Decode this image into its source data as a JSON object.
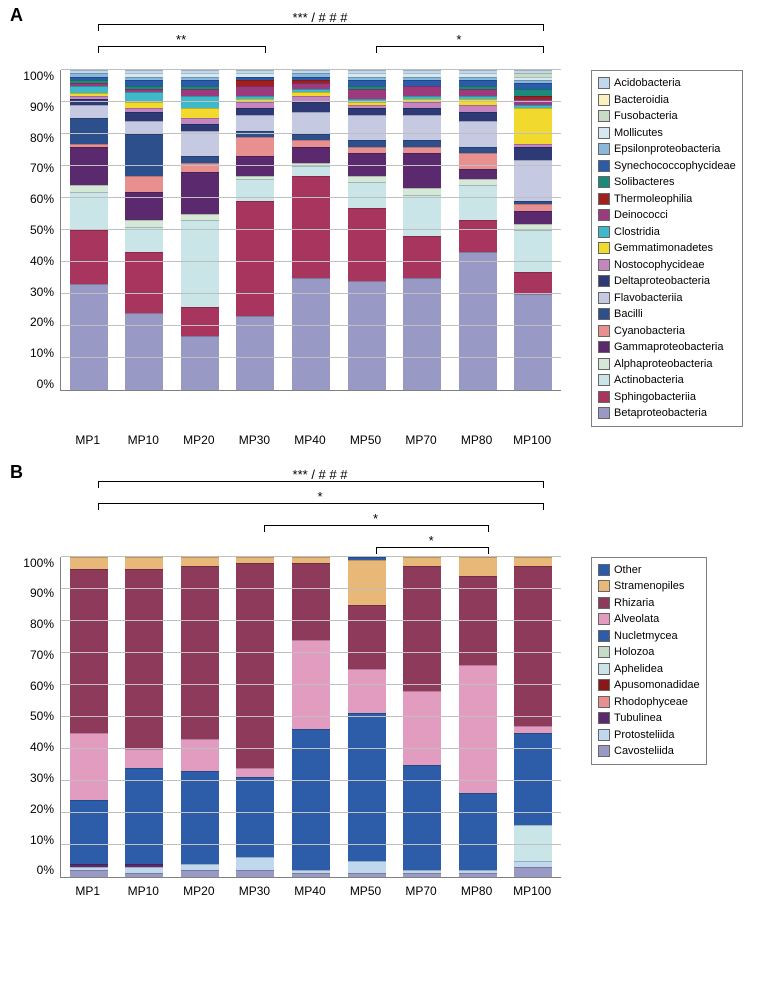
{
  "panelA": {
    "label": "A",
    "categories": [
      "MP1",
      "MP10",
      "MP20",
      "MP30",
      "MP40",
      "MP50",
      "MP70",
      "MP80",
      "MP100"
    ],
    "ylim": [
      0,
      100
    ],
    "ytick_step": 10,
    "sig": [
      {
        "text": "***   / # # #",
        "from": 0,
        "to": 8,
        "y": 0
      },
      {
        "text": "**",
        "from": 0,
        "to": 3,
        "y": 22
      },
      {
        "text": "*",
        "from": 5,
        "to": 8,
        "y": 22
      }
    ],
    "legend": [
      {
        "name": "Acidobacteria",
        "color": "#bfd8ed"
      },
      {
        "name": "Bacteroidia",
        "color": "#f9f2c0"
      },
      {
        "name": "Fusobacteria",
        "color": "#c6dcc6"
      },
      {
        "name": "Mollicutes",
        "color": "#d6e9f0"
      },
      {
        "name": "Epsilonproteobacteria",
        "color": "#89b8d8"
      },
      {
        "name": "Synechococcophycideae",
        "color": "#2a5caa"
      },
      {
        "name": "Solibacteres",
        "color": "#1a8a7a"
      },
      {
        "name": "Thermoleophilia",
        "color": "#a02020"
      },
      {
        "name": "Deinococci",
        "color": "#9b3a7d"
      },
      {
        "name": "Clostridia",
        "color": "#3fb8c9"
      },
      {
        "name": "Gemmatimonadetes",
        "color": "#f2d92e"
      },
      {
        "name": "Nostocophycideae",
        "color": "#c585bf"
      },
      {
        "name": "Deltaproteobacteria",
        "color": "#2e3a76"
      },
      {
        "name": "Flavobacteriia",
        "color": "#c5c9e2"
      },
      {
        "name": "Bacilli",
        "color": "#2d4f8c"
      },
      {
        "name": "Cyanobacteria",
        "color": "#e89090"
      },
      {
        "name": "Gammaproteobacteria",
        "color": "#5b2a6e"
      },
      {
        "name": "Alphaproteobacteria",
        "color": "#d5e8d5"
      },
      {
        "name": "Actinobacteria",
        "color": "#c9e5e8"
      },
      {
        "name": "Sphingobacteriia",
        "color": "#a8355e"
      },
      {
        "name": "Betaproteobacteria",
        "color": "#9999c5"
      }
    ],
    "data": [
      {
        "Betaproteobacteria": 33,
        "Sphingobacteriia": 17,
        "Actinobacteria": 12,
        "Alphaproteobacteria": 2,
        "Gammaproteobacteria": 12,
        "Cyanobacteria": 1,
        "Bacilli": 8,
        "Flavobacteriia": 4,
        "Deltaproteobacteria": 2,
        "Nostocophycideae": 1,
        "Gemmatimonadetes": 1,
        "Clostridia": 2,
        "Deinococci": 1,
        "Thermoleophilia": 0,
        "Solibacteres": 1,
        "Synechococcophycideae": 1,
        "Epsilonproteobacteria": 1,
        "Mollicutes": 0,
        "Fusobacteria": 0,
        "Bacteroidia": 0,
        "Acidobacteria": 1
      },
      {
        "Betaproteobacteria": 24,
        "Sphingobacteriia": 19,
        "Actinobacteria": 8,
        "Alphaproteobacteria": 2,
        "Gammaproteobacteria": 9,
        "Cyanobacteria": 5,
        "Bacilli": 13,
        "Flavobacteriia": 4,
        "Deltaproteobacteria": 3,
        "Nostocophycideae": 1,
        "Gemmatimonadetes": 2,
        "Clostridia": 3,
        "Deinococci": 1,
        "Thermoleophilia": 0,
        "Solibacteres": 1,
        "Synechococcophycideae": 2,
        "Epsilonproteobacteria": 1,
        "Mollicutes": 1,
        "Fusobacteria": 0,
        "Bacteroidia": 0,
        "Acidobacteria": 1
      },
      {
        "Betaproteobacteria": 17,
        "Sphingobacteriia": 9,
        "Actinobacteria": 27,
        "Alphaproteobacteria": 2,
        "Gammaproteobacteria": 13,
        "Cyanobacteria": 3,
        "Bacilli": 2,
        "Flavobacteriia": 8,
        "Deltaproteobacteria": 2,
        "Nostocophycideae": 2,
        "Gemmatimonadetes": 3,
        "Clostridia": 4,
        "Deinococci": 2,
        "Thermoleophilia": 0,
        "Solibacteres": 1,
        "Synechococcophycideae": 2,
        "Epsilonproteobacteria": 1,
        "Mollicutes": 1,
        "Fusobacteria": 0,
        "Bacteroidia": 0,
        "Acidobacteria": 1
      },
      {
        "Betaproteobacteria": 23,
        "Sphingobacteriia": 36,
        "Actinobacteria": 7,
        "Alphaproteobacteria": 1,
        "Gammaproteobacteria": 6,
        "Cyanobacteria": 6,
        "Bacilli": 2,
        "Flavobacteriia": 5,
        "Deltaproteobacteria": 2,
        "Nostocophycideae": 2,
        "Gemmatimonadetes": 1,
        "Clostridia": 1,
        "Deinococci": 3,
        "Thermoleophilia": 2,
        "Solibacteres": 0,
        "Synechococcophycideae": 1,
        "Epsilonproteobacteria": 0,
        "Mollicutes": 1,
        "Fusobacteria": 0,
        "Bacteroidia": 0,
        "Acidobacteria": 1
      },
      {
        "Betaproteobacteria": 35,
        "Sphingobacteriia": 32,
        "Actinobacteria": 3,
        "Alphaproteobacteria": 1,
        "Gammaproteobacteria": 5,
        "Cyanobacteria": 2,
        "Bacilli": 2,
        "Flavobacteriia": 7,
        "Deltaproteobacteria": 3,
        "Nostocophycideae": 2,
        "Gemmatimonadetes": 1,
        "Clostridia": 1,
        "Deinococci": 2,
        "Thermoleophilia": 1,
        "Solibacteres": 0,
        "Synechococcophycideae": 1,
        "Epsilonproteobacteria": 1,
        "Mollicutes": 0,
        "Fusobacteria": 0,
        "Bacteroidia": 0,
        "Acidobacteria": 1
      },
      {
        "Betaproteobacteria": 34,
        "Sphingobacteriia": 23,
        "Actinobacteria": 8,
        "Alphaproteobacteria": 2,
        "Gammaproteobacteria": 7,
        "Cyanobacteria": 2,
        "Bacilli": 2,
        "Flavobacteriia": 8,
        "Deltaproteobacteria": 2,
        "Nostocophycideae": 1,
        "Gemmatimonadetes": 1,
        "Clostridia": 1,
        "Deinococci": 3,
        "Thermoleophilia": 0,
        "Solibacteres": 1,
        "Synechococcophycideae": 2,
        "Epsilonproteobacteria": 1,
        "Mollicutes": 1,
        "Fusobacteria": 0,
        "Bacteroidia": 0,
        "Acidobacteria": 1
      },
      {
        "Betaproteobacteria": 35,
        "Sphingobacteriia": 13,
        "Actinobacteria": 13,
        "Alphaproteobacteria": 2,
        "Gammaproteobacteria": 11,
        "Cyanobacteria": 2,
        "Bacilli": 2,
        "Flavobacteriia": 8,
        "Deltaproteobacteria": 2,
        "Nostocophycideae": 2,
        "Gemmatimonadetes": 1,
        "Clostridia": 1,
        "Deinococci": 3,
        "Thermoleophilia": 0,
        "Solibacteres": 0,
        "Synechococcophycideae": 2,
        "Epsilonproteobacteria": 1,
        "Mollicutes": 1,
        "Fusobacteria": 0,
        "Bacteroidia": 0,
        "Acidobacteria": 1
      },
      {
        "Betaproteobacteria": 43,
        "Sphingobacteriia": 10,
        "Actinobacteria": 11,
        "Alphaproteobacteria": 2,
        "Gammaproteobacteria": 3,
        "Cyanobacteria": 5,
        "Bacilli": 2,
        "Flavobacteriia": 8,
        "Deltaproteobacteria": 3,
        "Nostocophycideae": 2,
        "Gemmatimonadetes": 2,
        "Clostridia": 1,
        "Deinococci": 2,
        "Thermoleophilia": 0,
        "Solibacteres": 1,
        "Synechococcophycideae": 2,
        "Epsilonproteobacteria": 1,
        "Mollicutes": 1,
        "Fusobacteria": 0,
        "Bacteroidia": 0,
        "Acidobacteria": 1
      },
      {
        "Betaproteobacteria": 30,
        "Sphingobacteriia": 7,
        "Actinobacteria": 13,
        "Alphaproteobacteria": 2,
        "Gammaproteobacteria": 4,
        "Cyanobacteria": 2,
        "Bacilli": 1,
        "Flavobacteriia": 13,
        "Deltaproteobacteria": 4,
        "Nostocophycideae": 1,
        "Gemmatimonadetes": 11,
        "Clostridia": 1,
        "Deinococci": 2,
        "Thermoleophilia": 1,
        "Solibacteres": 2,
        "Synechococcophycideae": 2,
        "Epsilonproteobacteria": 1,
        "Mollicutes": 1,
        "Fusobacteria": 1,
        "Bacteroidia": 0,
        "Acidobacteria": 1
      }
    ]
  },
  "panelB": {
    "label": "B",
    "categories": [
      "MP1",
      "MP10",
      "MP20",
      "MP30",
      "MP40",
      "MP50",
      "MP70",
      "MP80",
      "MP100"
    ],
    "ylim": [
      0,
      100
    ],
    "ytick_step": 10,
    "sig": [
      {
        "text": "*** / # # #",
        "from": 0,
        "to": 8,
        "y": 0
      },
      {
        "text": "*",
        "from": 0,
        "to": 8,
        "y": 22
      },
      {
        "text": "*",
        "from": 3,
        "to": 7,
        "y": 44
      },
      {
        "text": "*",
        "from": 5,
        "to": 7,
        "y": 66
      }
    ],
    "legend": [
      {
        "name": "Other",
        "color": "#2a5caa"
      },
      {
        "name": "Stramenopiles",
        "color": "#e8b878"
      },
      {
        "name": "Rhizaria",
        "color": "#8e3a5a"
      },
      {
        "name": "Alveolata",
        "color": "#e29cc0"
      },
      {
        "name": "Nucletmycea",
        "color": "#2d5da8"
      },
      {
        "name": "Holozoa",
        "color": "#c6dcc6"
      },
      {
        "name": "Aphelidea",
        "color": "#c9e5e8"
      },
      {
        "name": "Apusomonadidae",
        "color": "#8a1818"
      },
      {
        "name": "Rhodophyceae",
        "color": "#e89090"
      },
      {
        "name": "Tubulinea",
        "color": "#5b2a6e"
      },
      {
        "name": "Protosteliida",
        "color": "#bfd8ed"
      },
      {
        "name": "Cavosteliida",
        "color": "#9999c5"
      }
    ],
    "data": [
      {
        "Cavosteliida": 2,
        "Protosteliida": 1,
        "Tubulinea": 1,
        "Rhodophyceae": 0,
        "Apusomonadidae": 0,
        "Aphelidea": 0,
        "Holozoa": 0,
        "Nucletmycea": 20,
        "Alveolata": 21,
        "Rhizaria": 51,
        "Stramenopiles": 4,
        "Other": 0
      },
      {
        "Cavosteliida": 1,
        "Protosteliida": 2,
        "Tubulinea": 1,
        "Rhodophyceae": 0,
        "Apusomonadidae": 0,
        "Aphelidea": 0,
        "Holozoa": 0,
        "Nucletmycea": 30,
        "Alveolata": 6,
        "Rhizaria": 56,
        "Stramenopiles": 4,
        "Other": 0
      },
      {
        "Cavosteliida": 2,
        "Protosteliida": 2,
        "Tubulinea": 0,
        "Rhodophyceae": 0,
        "Apusomonadidae": 0,
        "Aphelidea": 0,
        "Holozoa": 0,
        "Nucletmycea": 29,
        "Alveolata": 10,
        "Rhizaria": 54,
        "Stramenopiles": 3,
        "Other": 0
      },
      {
        "Cavosteliida": 2,
        "Protosteliida": 4,
        "Tubulinea": 0,
        "Rhodophyceae": 0,
        "Apusomonadidae": 0,
        "Aphelidea": 0,
        "Holozoa": 0,
        "Nucletmycea": 25,
        "Alveolata": 3,
        "Rhizaria": 64,
        "Stramenopiles": 2,
        "Other": 0
      },
      {
        "Cavosteliida": 1,
        "Protosteliida": 1,
        "Tubulinea": 0,
        "Rhodophyceae": 0,
        "Apusomonadidae": 0,
        "Aphelidea": 0,
        "Holozoa": 0,
        "Nucletmycea": 44,
        "Alveolata": 28,
        "Rhizaria": 24,
        "Stramenopiles": 2,
        "Other": 0
      },
      {
        "Cavosteliida": 1,
        "Protosteliida": 4,
        "Tubulinea": 0,
        "Rhodophyceae": 0,
        "Apusomonadidae": 0,
        "Aphelidea": 0,
        "Holozoa": 0,
        "Nucletmycea": 46,
        "Alveolata": 14,
        "Rhizaria": 20,
        "Stramenopiles": 14,
        "Other": 1
      },
      {
        "Cavosteliida": 1,
        "Protosteliida": 1,
        "Tubulinea": 0,
        "Rhodophyceae": 0,
        "Apusomonadidae": 0,
        "Aphelidea": 0,
        "Holozoa": 0,
        "Nucletmycea": 33,
        "Alveolata": 23,
        "Rhizaria": 39,
        "Stramenopiles": 3,
        "Other": 0
      },
      {
        "Cavosteliida": 1,
        "Protosteliida": 1,
        "Tubulinea": 0,
        "Rhodophyceae": 0,
        "Apusomonadidae": 0,
        "Aphelidea": 0,
        "Holozoa": 0,
        "Nucletmycea": 24,
        "Alveolata": 40,
        "Rhizaria": 28,
        "Stramenopiles": 6,
        "Other": 0
      },
      {
        "Cavosteliida": 3,
        "Protosteliida": 2,
        "Tubulinea": 0,
        "Rhodophyceae": 0,
        "Apusomonadidae": 0,
        "Aphelidea": 11,
        "Holozoa": 0,
        "Nucletmycea": 29,
        "Alveolata": 2,
        "Rhizaria": 50,
        "Stramenopiles": 3,
        "Other": 0
      }
    ]
  }
}
